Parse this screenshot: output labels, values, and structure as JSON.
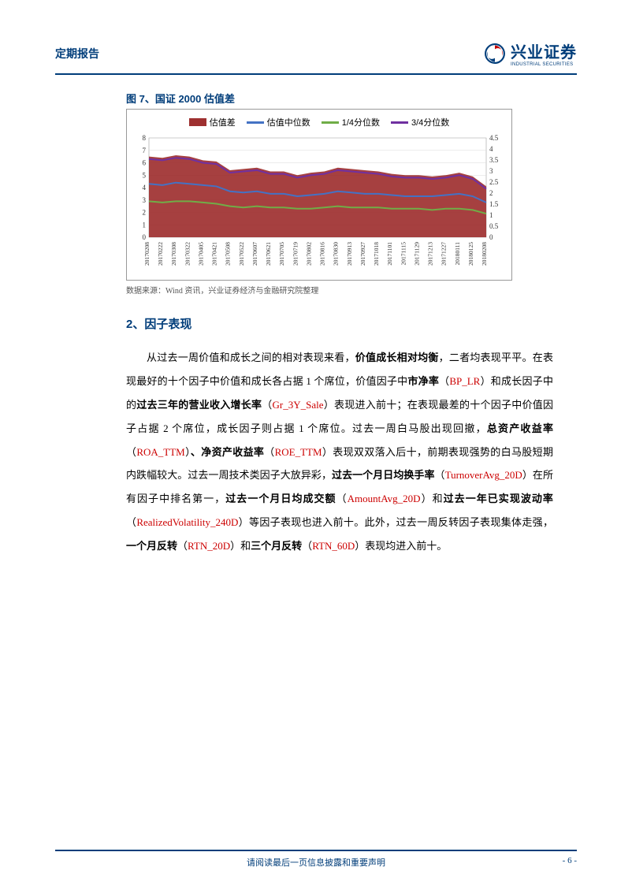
{
  "header": {
    "title": "定期报告",
    "logo_cn": "兴业证券",
    "logo_en": "INDUSTRIAL SECURITIES"
  },
  "chart": {
    "type": "combo-area-line",
    "title": "图 7、国证 2000 估值差",
    "legend": [
      {
        "label": "估值差",
        "color": "#9e3030",
        "kind": "area"
      },
      {
        "label": "估值中位数",
        "color": "#4472c4",
        "kind": "line"
      },
      {
        "label": "1/4分位数",
        "color": "#70ad47",
        "kind": "line"
      },
      {
        "label": "3/4分位数",
        "color": "#7030a0",
        "kind": "line"
      }
    ],
    "left_axis": {
      "min": 0,
      "max": 8,
      "step": 1
    },
    "right_axis": {
      "min": 0,
      "max": 4.5,
      "step": 0.5
    },
    "x_labels": [
      "20170208",
      "20170222",
      "20170308",
      "20170322",
      "20170405",
      "20170421",
      "20170508",
      "20170522",
      "20170607",
      "20170621",
      "20170705",
      "20170719",
      "20170802",
      "20170816",
      "20170830",
      "20170913",
      "20170927",
      "20171018",
      "20171101",
      "20171115",
      "20171129",
      "20171213",
      "20171227",
      "20180111",
      "20180125",
      "20180208"
    ],
    "series": {
      "area_top": [
        6.5,
        6.4,
        6.6,
        6.5,
        6.2,
        6.1,
        5.4,
        5.5,
        5.6,
        5.3,
        5.3,
        5.0,
        5.2,
        5.3,
        5.6,
        5.5,
        5.4,
        5.3,
        5.1,
        5.0,
        5.0,
        4.9,
        5.0,
        5.2,
        4.9,
        4.1
      ],
      "median": [
        4.3,
        4.2,
        4.4,
        4.3,
        4.2,
        4.1,
        3.7,
        3.6,
        3.7,
        3.5,
        3.5,
        3.3,
        3.4,
        3.5,
        3.7,
        3.6,
        3.5,
        3.5,
        3.4,
        3.3,
        3.3,
        3.3,
        3.4,
        3.5,
        3.3,
        2.8
      ],
      "q1": [
        2.9,
        2.8,
        2.9,
        2.9,
        2.8,
        2.7,
        2.5,
        2.4,
        2.5,
        2.4,
        2.4,
        2.3,
        2.3,
        2.4,
        2.5,
        2.4,
        2.4,
        2.4,
        2.3,
        2.3,
        2.3,
        2.2,
        2.3,
        2.3,
        2.2,
        1.9
      ],
      "q3": [
        6.3,
        6.2,
        6.4,
        6.3,
        6.0,
        5.9,
        5.2,
        5.3,
        5.4,
        5.1,
        5.1,
        4.8,
        5.0,
        5.1,
        5.4,
        5.3,
        5.2,
        5.1,
        4.9,
        4.8,
        4.8,
        4.7,
        4.8,
        5.0,
        4.7,
        3.9
      ]
    },
    "background_color": "#ffffff",
    "grid_color": "#d9d9d9",
    "source": "数据来源：Wind 资讯，兴业证券经济与金融研究院整理"
  },
  "section": {
    "title": "2、因子表现",
    "p1a": "从过去一周价值和成长之间的相对表现来看，",
    "p1b": "价值成长相对均衡",
    "p1c": "，二者均表现平平。在表现最好的十个因子中价值和成长各占据 1 个席位，价值因子中",
    "p1d": "市净率",
    "p1e": "（",
    "p1f": "BP_LR",
    "p1g": "）和成长因子中的",
    "p1h": "过去三年的营业收入增长率",
    "p1i": "（",
    "p1j": "Gr_3Y_Sale",
    "p1k": "）表现进入前十；在表现最差的十个因子中价值因子占据 2 个席位，成长因子则占据 1 个席位。过去一周白马股出现回撤，",
    "p1l": "总资产收益率",
    "p1m": "（",
    "p1n": "ROA_TTM",
    "p1o": "）",
    "p1p": "、净资产收益率",
    "p1q": "（",
    "p1r": "ROE_TTM",
    "p1s": "）表现双双落入后十，前期表现强势的白马股短期内跌幅较大。过去一周技术类因子大放异彩，",
    "p1t": "过去一个月日均换手率",
    "p1u": "（",
    "p1v": "TurnoverAvg_20D",
    "p1w": "）在所有因子中排名第一，",
    "p1x": "过去一个月日均成交额",
    "p1y": "（",
    "p1z": "AmountAvg_20D",
    "p1aa": "）和",
    "p1ab": "过去一年已实现波动率",
    "p1ac": "（",
    "p1ad": "RealizedVolatility_240D",
    "p1ae": "）等因子表现也进入前十。此外，过去一周反转因子表现集体走强，",
    "p1af": "一个月反转",
    "p1ag": "（",
    "p1ah": "RTN_20D",
    "p1ai": "）和",
    "p1aj": "三个月反转",
    "p1ak": "（",
    "p1al": "RTN_60D",
    "p1am": "）表现均进入前十。"
  },
  "footer": {
    "disclaimer": "请阅读最后一页信息披露和重要声明",
    "page": "- 6 -"
  }
}
